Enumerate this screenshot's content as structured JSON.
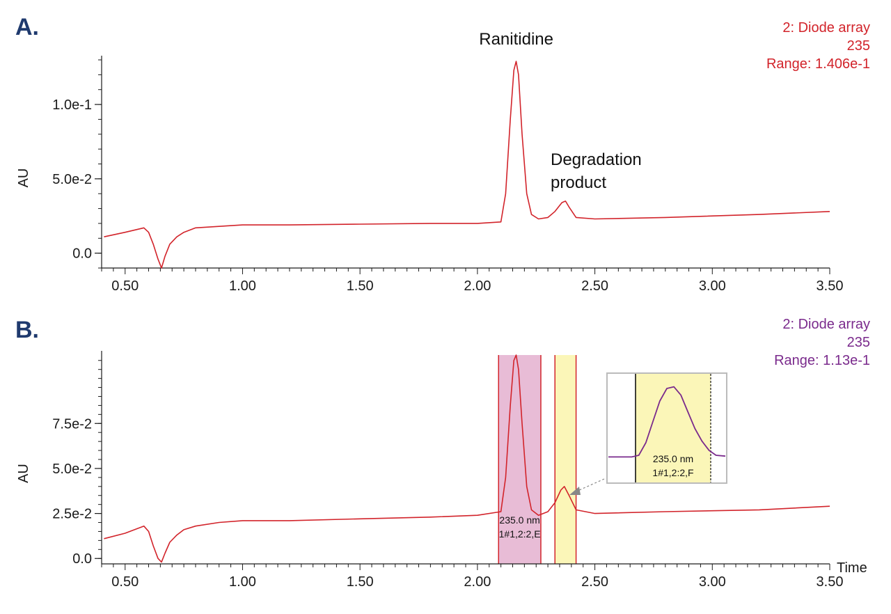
{
  "colors": {
    "panel_letter": "#1f3a6e",
    "trace_a": "#d2232a",
    "trace_b": "#d2232a",
    "info_a": "#d2232a",
    "info_b": "#7a2a8c",
    "inset_trace": "#7a2a8c",
    "highlight_pink": "#e8bcd6",
    "highlight_yellow": "#fbf6b8",
    "axis": "#1a1a1a"
  },
  "chart_data": [
    {
      "type": "line",
      "panel_label": "A.",
      "info_lines": [
        "2: Diode array",
        "235",
        "Range: 1.406e-1"
      ],
      "ylabel": "AU",
      "xlabel": "",
      "xlim": [
        0.4,
        3.5
      ],
      "ylim": [
        -0.01,
        0.13
      ],
      "x_ticks": [
        0.5,
        1.0,
        1.5,
        2.0,
        2.5,
        3.0,
        3.5
      ],
      "x_tick_labels": [
        "0.50",
        "1.00",
        "1.50",
        "2.00",
        "2.50",
        "3.00",
        "3.50"
      ],
      "y_ticks": [
        0.0,
        0.05,
        0.1
      ],
      "y_tick_labels": [
        "0.0",
        "5.0e-2",
        "1.0e-1"
      ],
      "annotations": [
        {
          "text": "Ranitidine",
          "x": 2.18,
          "y": 0.142
        },
        {
          "text": "Degradation product",
          "lines": [
            "Degradation",
            "product"
          ],
          "x": 2.34,
          "y": 0.06
        }
      ],
      "series": [
        {
          "values_x": [
            0.41,
            0.5,
            0.58,
            0.6,
            0.62,
            0.64,
            0.655,
            0.67,
            0.69,
            0.72,
            0.75,
            0.8,
            0.9,
            1.0,
            1.2,
            1.5,
            1.8,
            2.0,
            2.1,
            2.12,
            2.14,
            2.155,
            2.165,
            2.175,
            2.19,
            2.21,
            2.23,
            2.26,
            2.3,
            2.33,
            2.36,
            2.375,
            2.39,
            2.42,
            2.5,
            2.8,
            3.2,
            3.5
          ],
          "values_y": [
            0.011,
            0.014,
            0.017,
            0.014,
            0.006,
            -0.004,
            -0.01,
            -0.002,
            0.006,
            0.011,
            0.014,
            0.017,
            0.018,
            0.019,
            0.019,
            0.0195,
            0.02,
            0.02,
            0.021,
            0.04,
            0.09,
            0.123,
            0.129,
            0.12,
            0.08,
            0.04,
            0.026,
            0.023,
            0.024,
            0.028,
            0.034,
            0.035,
            0.031,
            0.024,
            0.023,
            0.024,
            0.026,
            0.028
          ]
        }
      ]
    },
    {
      "type": "line",
      "panel_label": "B.",
      "info_lines": [
        "2: Diode array",
        "235",
        "Range: 1.13e-1"
      ],
      "ylabel": "AU",
      "xlabel": "Time",
      "xlim": [
        0.4,
        3.5
      ],
      "ylim": [
        -0.003,
        0.113
      ],
      "x_ticks": [
        0.5,
        1.0,
        1.5,
        2.0,
        2.5,
        3.0,
        3.5
      ],
      "x_tick_labels": [
        "0.50",
        "1.00",
        "1.50",
        "2.00",
        "2.50",
        "3.00",
        "3.50"
      ],
      "y_ticks": [
        0.0,
        0.025,
        0.05,
        0.075
      ],
      "y_tick_labels": [
        "0.0",
        "2.5e-2",
        "5.0e-2",
        "7.5e-2"
      ],
      "highlights": [
        {
          "x0": 2.09,
          "x1": 2.27,
          "color": "pink",
          "label_lines": [
            "235.0 nm",
            "1#1,2:2,E"
          ]
        },
        {
          "x0": 2.33,
          "x1": 2.42,
          "color": "yellow"
        }
      ],
      "series": [
        {
          "values_x": [
            0.41,
            0.5,
            0.58,
            0.6,
            0.62,
            0.64,
            0.655,
            0.67,
            0.69,
            0.72,
            0.75,
            0.8,
            0.9,
            1.0,
            1.2,
            1.5,
            1.8,
            2.0,
            2.1,
            2.12,
            2.14,
            2.155,
            2.165,
            2.175,
            2.19,
            2.21,
            2.23,
            2.26,
            2.3,
            2.33,
            2.355,
            2.37,
            2.39,
            2.42,
            2.5,
            2.8,
            3.2,
            3.5
          ],
          "values_y": [
            0.011,
            0.014,
            0.018,
            0.015,
            0.007,
            0.0,
            -0.002,
            0.003,
            0.009,
            0.013,
            0.016,
            0.018,
            0.02,
            0.021,
            0.021,
            0.022,
            0.023,
            0.024,
            0.026,
            0.045,
            0.085,
            0.11,
            0.113,
            0.105,
            0.075,
            0.04,
            0.027,
            0.024,
            0.026,
            0.031,
            0.038,
            0.04,
            0.035,
            0.027,
            0.025,
            0.026,
            0.027,
            0.029
          ]
        }
      ],
      "inset": {
        "label_lines": [
          "235.0 nm",
          "1#1,2:2,F"
        ],
        "trace_x": [
          0,
          0.2,
          0.26,
          0.32,
          0.38,
          0.44,
          0.5,
          0.56,
          0.62,
          0.68,
          0.74,
          0.8,
          0.86,
          0.92,
          1.0
        ],
        "trace_y": [
          0.08,
          0.08,
          0.1,
          0.25,
          0.5,
          0.75,
          0.9,
          0.92,
          0.82,
          0.62,
          0.42,
          0.27,
          0.16,
          0.1,
          0.09
        ]
      }
    }
  ]
}
